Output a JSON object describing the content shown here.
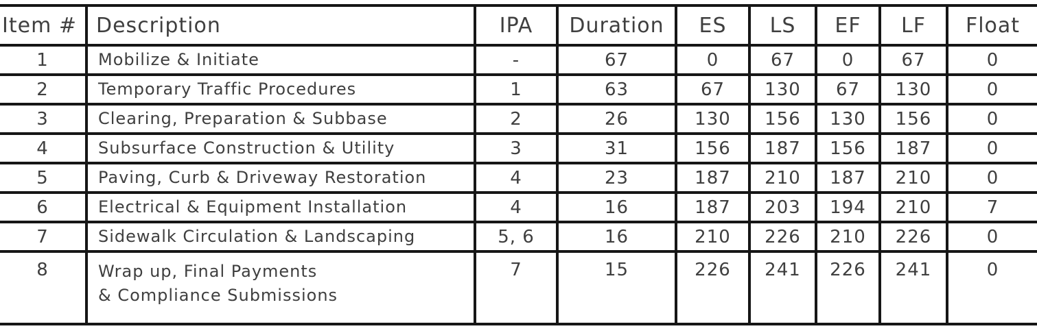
{
  "colors": {
    "ink": "#3f3f3f",
    "line": "#161616",
    "background": "#ffffff"
  },
  "table": {
    "columns": [
      "Item #",
      "Description",
      "IPA",
      "Duration",
      "ES",
      "LS",
      "EF",
      "LF",
      "Float"
    ],
    "rows": [
      {
        "item": "1",
        "description": "Mobilize & Initiate",
        "ipa": "-",
        "duration": "67",
        "es": "0",
        "ls": "67",
        "ef": "0",
        "lf": "67",
        "float": "0"
      },
      {
        "item": "2",
        "description": "Temporary Traffic Procedures",
        "ipa": "1",
        "duration": "63",
        "es": "67",
        "ls": "130",
        "ef": "67",
        "lf": "130",
        "float": "0"
      },
      {
        "item": "3",
        "description": "Clearing, Preparation & Subbase",
        "ipa": "2",
        "duration": "26",
        "es": "130",
        "ls": "156",
        "ef": "130",
        "lf": "156",
        "float": "0"
      },
      {
        "item": "4",
        "description": "Subsurface Construction & Utility",
        "ipa": "3",
        "duration": "31",
        "es": "156",
        "ls": "187",
        "ef": "156",
        "lf": "187",
        "float": "0"
      },
      {
        "item": "5",
        "description": "Paving, Curb & Driveway Restoration",
        "ipa": "4",
        "duration": "23",
        "es": "187",
        "ls": "210",
        "ef": "187",
        "lf": "210",
        "float": "0"
      },
      {
        "item": "6",
        "description": "Electrical & Equipment Installation",
        "ipa": "4",
        "duration": "16",
        "es": "187",
        "ls": "203",
        "ef": "194",
        "lf": "210",
        "float": "7"
      },
      {
        "item": "7",
        "description": "Sidewalk Circulation & Landscaping",
        "ipa": "5, 6",
        "duration": "16",
        "es": "210",
        "ls": "226",
        "ef": "210",
        "lf": "226",
        "float": "0"
      },
      {
        "item": "8",
        "description": "Wrap up, Final Payments\n& Compliance Submissions",
        "ipa": "7",
        "duration": "15",
        "es": "226",
        "ls": "241",
        "ef": "226",
        "lf": "241",
        "float": "0"
      }
    ]
  }
}
